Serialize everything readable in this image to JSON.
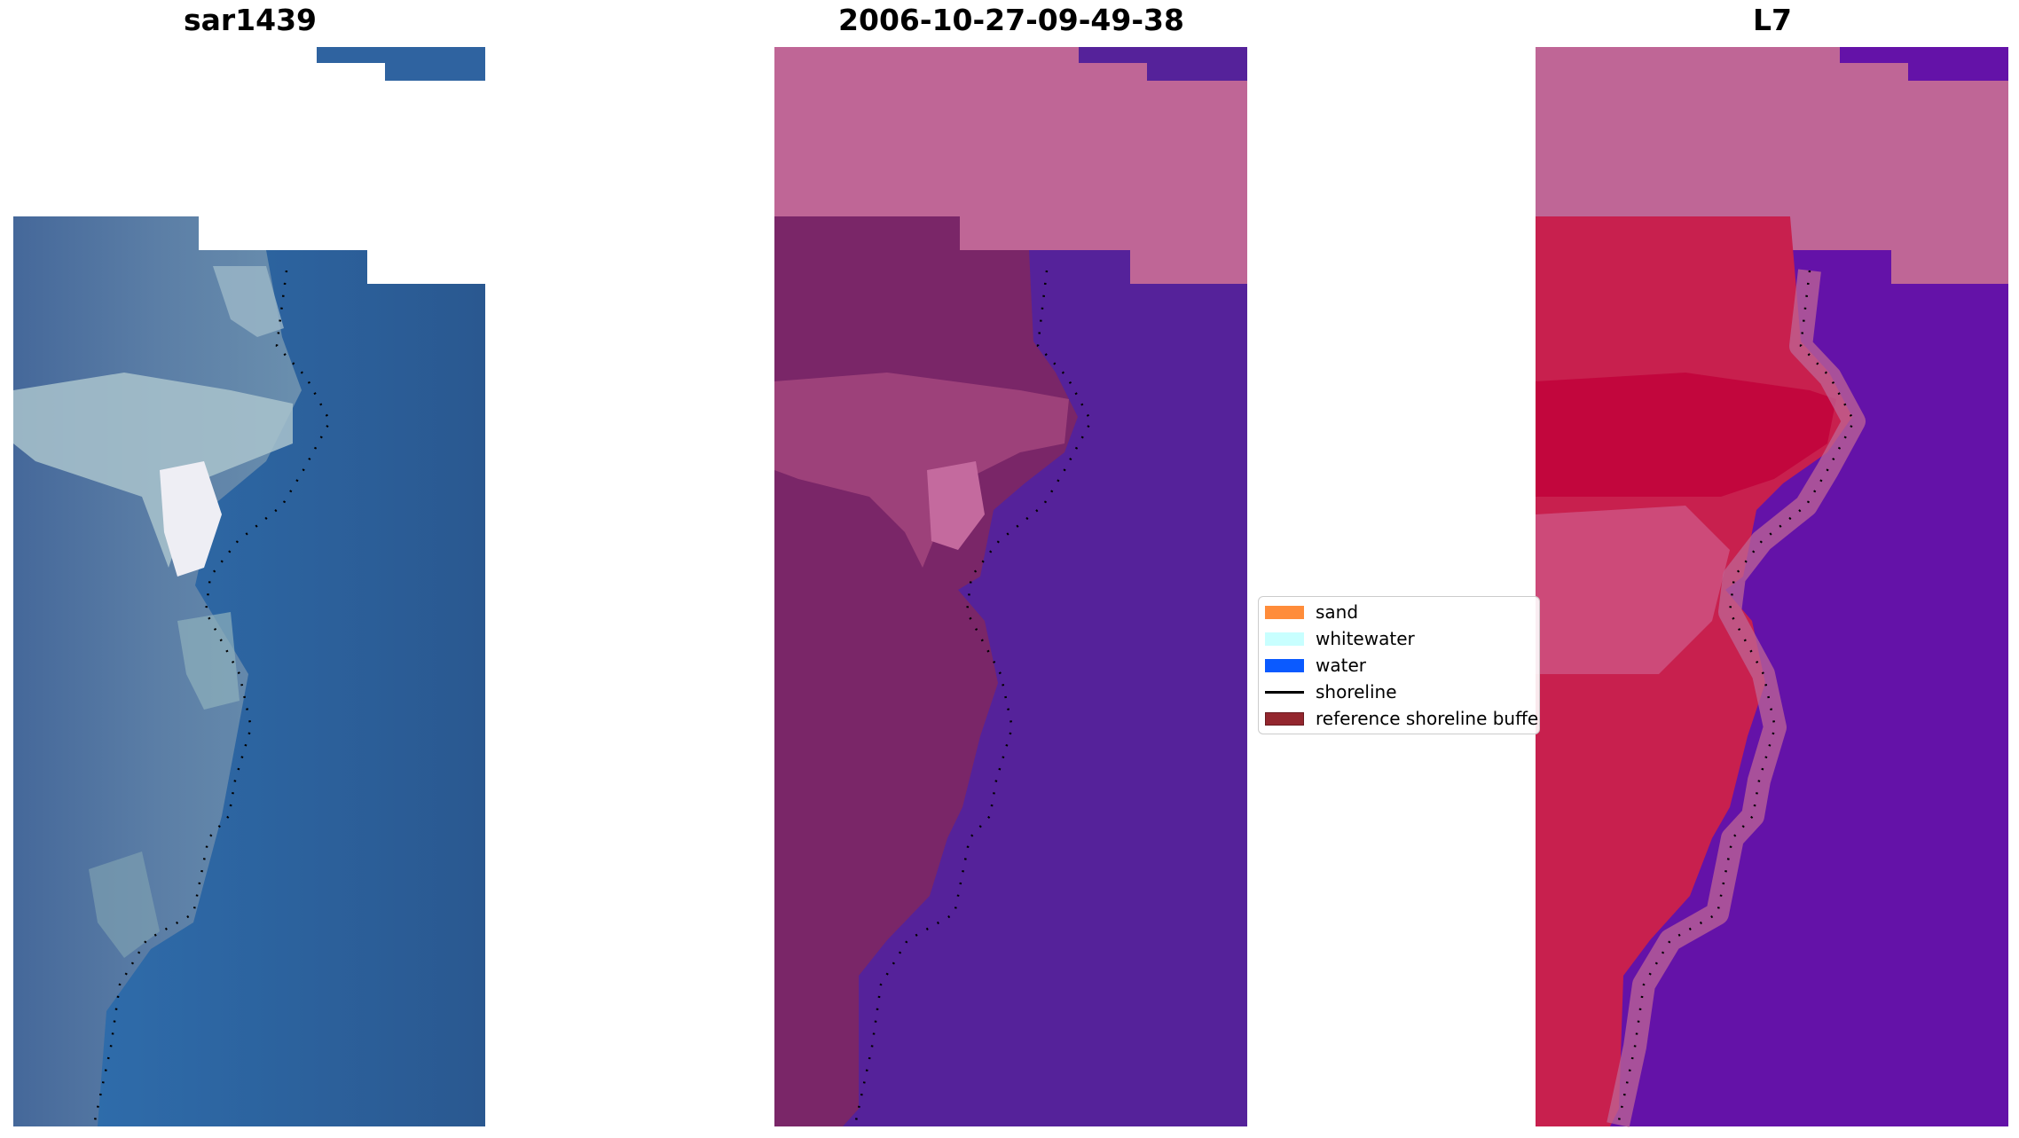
{
  "panels": [
    {
      "title": "sar1439",
      "kind": "rgb"
    },
    {
      "title": "2006-10-27-09-49-38",
      "kind": "classified"
    },
    {
      "title": "L7",
      "kind": "mndwi"
    }
  ],
  "legend": {
    "placement": "center",
    "items": [
      {
        "label": "sand",
        "type": "patch",
        "color": "#ff8c3a"
      },
      {
        "label": "whitewater",
        "type": "patch",
        "color": "#c8ffff"
      },
      {
        "label": "water",
        "type": "patch",
        "color": "#0a5aff"
      },
      {
        "label": "shoreline",
        "type": "line",
        "color": "#000000"
      },
      {
        "label": "reference shoreline buffer",
        "type": "patch",
        "color": "#93262e"
      }
    ]
  },
  "colors": {
    "buffer_overlay": "#bf6696",
    "water_class": "#55229a",
    "rgb_water": "#2a66a8",
    "mndwi_land": "#c8204e",
    "mndwi_water": "#6410a8"
  }
}
